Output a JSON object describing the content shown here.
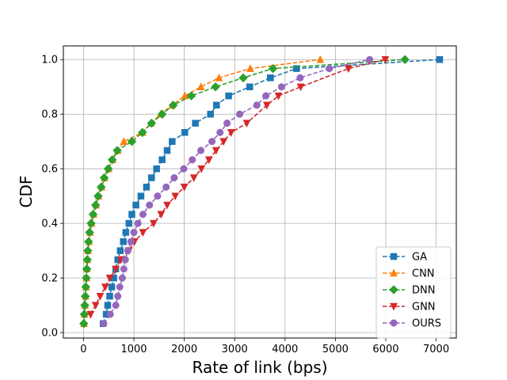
{
  "chart_data": {
    "type": "line",
    "xlabel": "Rate of link (bps)",
    "ylabel": "CDF",
    "xlim": [
      -400,
      7400
    ],
    "ylim": [
      -0.02,
      1.05
    ],
    "xticks": [
      0,
      1000,
      2000,
      3000,
      4000,
      5000,
      6000,
      7000
    ],
    "yticks": [
      0.0,
      0.2,
      0.4,
      0.6,
      0.8,
      1.0
    ],
    "grid": true,
    "legend_position": "lower-right",
    "series": [
      {
        "name": "GA",
        "color": "#1f77b4",
        "marker": "square",
        "linestyle": "dashed",
        "points": [
          [
            390,
            0.033
          ],
          [
            450,
            0.067
          ],
          [
            480,
            0.1
          ],
          [
            520,
            0.133
          ],
          [
            560,
            0.167
          ],
          [
            600,
            0.2
          ],
          [
            640,
            0.233
          ],
          [
            680,
            0.267
          ],
          [
            730,
            0.3
          ],
          [
            790,
            0.333
          ],
          [
            840,
            0.367
          ],
          [
            900,
            0.4
          ],
          [
            960,
            0.433
          ],
          [
            1040,
            0.467
          ],
          [
            1140,
            0.5
          ],
          [
            1250,
            0.533
          ],
          [
            1350,
            0.567
          ],
          [
            1450,
            0.6
          ],
          [
            1560,
            0.633
          ],
          [
            1660,
            0.667
          ],
          [
            1760,
            0.7
          ],
          [
            2010,
            0.733
          ],
          [
            2220,
            0.767
          ],
          [
            2520,
            0.8
          ],
          [
            2640,
            0.833
          ],
          [
            2880,
            0.867
          ],
          [
            3300,
            0.9
          ],
          [
            3710,
            0.933
          ],
          [
            4230,
            0.967
          ],
          [
            7070,
            1.0
          ]
        ]
      },
      {
        "name": "CNN",
        "color": "#ff7f0e",
        "marker": "triangle-up",
        "linestyle": "dashed",
        "points": [
          [
            10,
            0.033
          ],
          [
            20,
            0.067
          ],
          [
            30,
            0.1
          ],
          [
            40,
            0.133
          ],
          [
            50,
            0.167
          ],
          [
            60,
            0.2
          ],
          [
            70,
            0.233
          ],
          [
            80,
            0.267
          ],
          [
            90,
            0.3
          ],
          [
            110,
            0.333
          ],
          [
            130,
            0.367
          ],
          [
            160,
            0.4
          ],
          [
            200,
            0.433
          ],
          [
            250,
            0.467
          ],
          [
            300,
            0.5
          ],
          [
            360,
            0.533
          ],
          [
            420,
            0.567
          ],
          [
            500,
            0.6
          ],
          [
            580,
            0.633
          ],
          [
            680,
            0.667
          ],
          [
            800,
            0.7
          ],
          [
            1170,
            0.733
          ],
          [
            1340,
            0.767
          ],
          [
            1530,
            0.8
          ],
          [
            1760,
            0.833
          ],
          [
            2010,
            0.867
          ],
          [
            2330,
            0.9
          ],
          [
            2690,
            0.933
          ],
          [
            3310,
            0.967
          ],
          [
            4700,
            1.0
          ]
        ]
      },
      {
        "name": "DNN",
        "color": "#2ca02c",
        "marker": "diamond",
        "linestyle": "dashed",
        "points": [
          [
            5,
            0.033
          ],
          [
            15,
            0.067
          ],
          [
            25,
            0.1
          ],
          [
            35,
            0.133
          ],
          [
            45,
            0.167
          ],
          [
            55,
            0.2
          ],
          [
            65,
            0.233
          ],
          [
            75,
            0.267
          ],
          [
            85,
            0.3
          ],
          [
            100,
            0.333
          ],
          [
            120,
            0.367
          ],
          [
            150,
            0.4
          ],
          [
            190,
            0.433
          ],
          [
            240,
            0.467
          ],
          [
            290,
            0.5
          ],
          [
            350,
            0.533
          ],
          [
            410,
            0.567
          ],
          [
            490,
            0.6
          ],
          [
            570,
            0.633
          ],
          [
            670,
            0.667
          ],
          [
            960,
            0.7
          ],
          [
            1170,
            0.733
          ],
          [
            1350,
            0.767
          ],
          [
            1560,
            0.8
          ],
          [
            1780,
            0.833
          ],
          [
            2140,
            0.867
          ],
          [
            2620,
            0.9
          ],
          [
            3170,
            0.933
          ],
          [
            3760,
            0.967
          ],
          [
            6380,
            1.0
          ]
        ]
      },
      {
        "name": "GNN",
        "color": "#d62728",
        "marker": "triangle-down",
        "linestyle": "dashed",
        "points": [
          [
            140,
            0.067
          ],
          [
            240,
            0.1
          ],
          [
            330,
            0.133
          ],
          [
            430,
            0.167
          ],
          [
            520,
            0.2
          ],
          [
            640,
            0.233
          ],
          [
            740,
            0.267
          ],
          [
            900,
            0.3
          ],
          [
            1010,
            0.333
          ],
          [
            1180,
            0.367
          ],
          [
            1390,
            0.4
          ],
          [
            1540,
            0.433
          ],
          [
            1660,
            0.467
          ],
          [
            1820,
            0.5
          ],
          [
            2000,
            0.533
          ],
          [
            2190,
            0.567
          ],
          [
            2340,
            0.6
          ],
          [
            2490,
            0.633
          ],
          [
            2630,
            0.667
          ],
          [
            2780,
            0.7
          ],
          [
            2930,
            0.733
          ],
          [
            3240,
            0.767
          ],
          [
            3640,
            0.833
          ],
          [
            3870,
            0.867
          ],
          [
            4310,
            0.9
          ],
          [
            5260,
            0.967
          ],
          [
            5990,
            1.0
          ]
        ]
      },
      {
        "name": "OURS",
        "color": "#9467bd",
        "marker": "circle",
        "linestyle": "dashed",
        "points": [
          [
            400,
            0.033
          ],
          [
            530,
            0.067
          ],
          [
            640,
            0.1
          ],
          [
            680,
            0.133
          ],
          [
            720,
            0.167
          ],
          [
            770,
            0.2
          ],
          [
            800,
            0.233
          ],
          [
            830,
            0.267
          ],
          [
            880,
            0.3
          ],
          [
            940,
            0.333
          ],
          [
            1000,
            0.367
          ],
          [
            1080,
            0.4
          ],
          [
            1180,
            0.433
          ],
          [
            1310,
            0.467
          ],
          [
            1470,
            0.5
          ],
          [
            1640,
            0.533
          ],
          [
            1800,
            0.567
          ],
          [
            1990,
            0.6
          ],
          [
            2160,
            0.633
          ],
          [
            2330,
            0.667
          ],
          [
            2550,
            0.7
          ],
          [
            2710,
            0.733
          ],
          [
            2850,
            0.767
          ],
          [
            3100,
            0.8
          ],
          [
            3440,
            0.833
          ],
          [
            3620,
            0.867
          ],
          [
            3930,
            0.9
          ],
          [
            4300,
            0.933
          ],
          [
            4880,
            0.967
          ],
          [
            5680,
            1.0
          ]
        ]
      }
    ]
  }
}
